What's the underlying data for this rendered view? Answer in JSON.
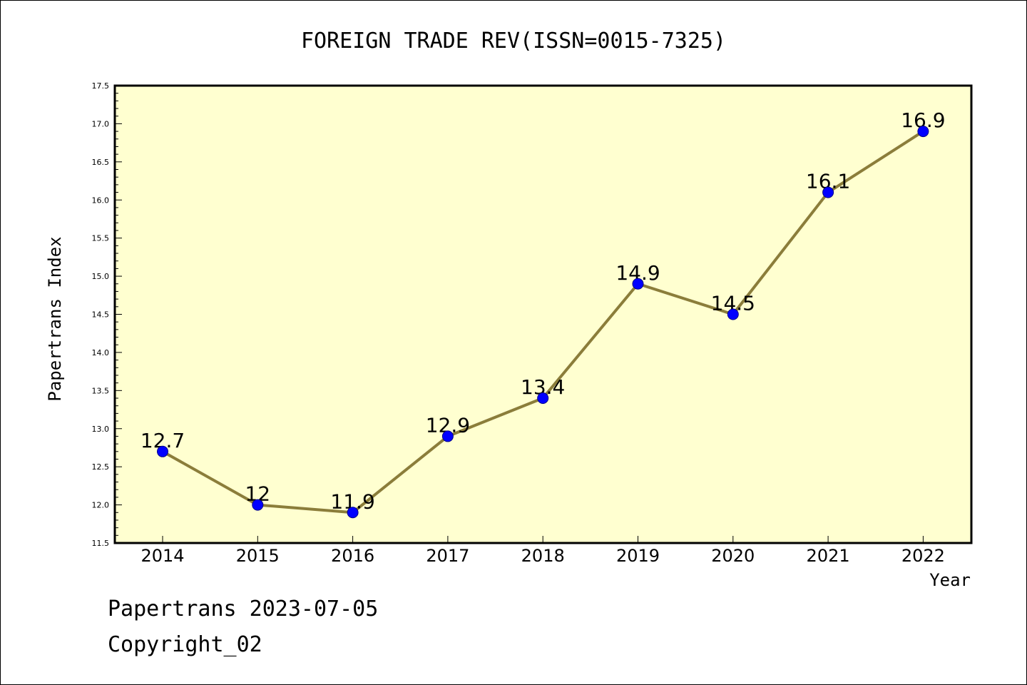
{
  "chart_data": {
    "type": "line",
    "title": "FOREIGN TRADE REV(ISSN=0015-7325)",
    "xlabel": "Year",
    "ylabel": "Papertrans Index",
    "categories": [
      "2014",
      "2015",
      "2016",
      "2017",
      "2018",
      "2019",
      "2020",
      "2021",
      "2022"
    ],
    "series": [
      {
        "values": [
          12.7,
          12.0,
          11.9,
          12.9,
          13.4,
          14.9,
          14.5,
          16.1,
          16.9
        ],
        "data_labels": [
          "12.7",
          "12",
          "11.9",
          "12.9",
          "13.4",
          "14.9",
          "14.5",
          "16.1",
          "16.9"
        ],
        "line_color": "#8b7d3a",
        "marker_color": "#0000ff"
      }
    ],
    "ylim": [
      11.5,
      17.5
    ],
    "yticks": [
      "11.5",
      "12.0",
      "12.5",
      "13.0",
      "13.5",
      "14.0",
      "14.5",
      "15.0",
      "15.5",
      "16.0",
      "16.5",
      "17.0",
      "17.5"
    ],
    "grid": false,
    "plot_background": "#ffffd0"
  },
  "footer": {
    "line1": "Papertrans 2023-07-05",
    "line2": "Copyright_02"
  }
}
